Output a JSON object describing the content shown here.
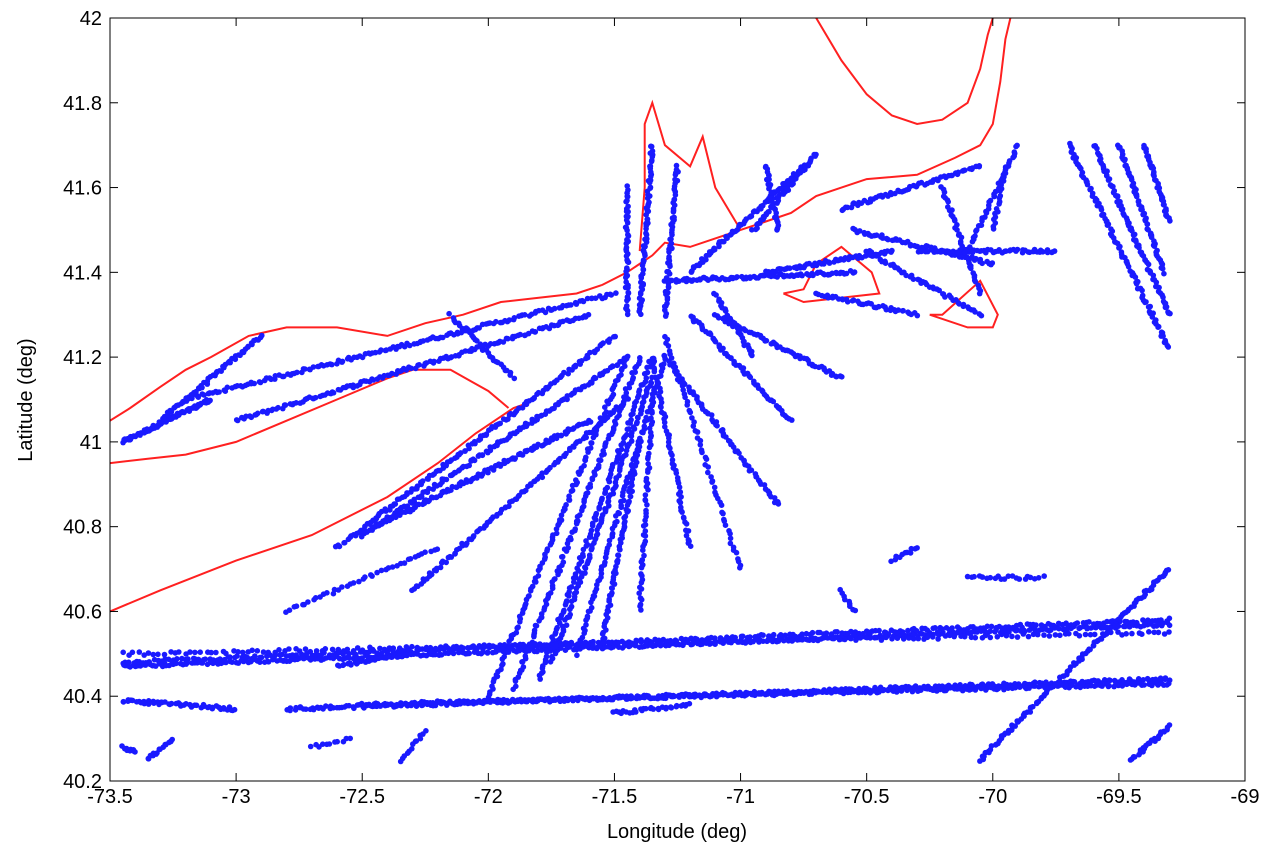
{
  "chart_data": {
    "type": "scatter",
    "title": "",
    "xlabel": "Longitude (deg)",
    "ylabel": "Latitude (deg)",
    "xlim": [
      -73.5,
      -69
    ],
    "ylim": [
      40.2,
      42
    ],
    "xticks": [
      -73.5,
      -73,
      -72.5,
      -72,
      -71.5,
      -71,
      -70.5,
      -70,
      -69.5,
      -69
    ],
    "yticks": [
      40.2,
      40.4,
      40.6,
      40.8,
      41,
      41.2,
      41.4,
      41.6,
      41.8,
      42
    ],
    "xtick_labels": [
      "-73.5",
      "-73",
      "-72.5",
      "-72",
      "-71.5",
      "-71",
      "-70.5",
      "-70",
      "-69.5",
      "-69"
    ],
    "ytick_labels": [
      "40.2",
      "40.4",
      "40.6",
      "40.8",
      "41",
      "41.2",
      "41.4",
      "41.6",
      "41.8",
      "42"
    ],
    "grid": false,
    "colors": {
      "coastline": "#ff2020",
      "tracks": "#1a1aff"
    },
    "coastline": {
      "li_north": [
        [
          -73.5,
          41.05
        ],
        [
          -73.42,
          41.08
        ],
        [
          -73.3,
          41.13
        ],
        [
          -73.2,
          41.17
        ],
        [
          -73.1,
          41.2
        ],
        [
          -72.95,
          41.25
        ],
        [
          -72.8,
          41.27
        ],
        [
          -72.6,
          41.27
        ],
        [
          -72.4,
          41.25
        ],
        [
          -72.25,
          41.28
        ],
        [
          -72.1,
          41.3
        ],
        [
          -71.95,
          41.33
        ],
        [
          -71.8,
          41.34
        ],
        [
          -71.65,
          41.35
        ],
        [
          -71.55,
          41.37
        ]
      ],
      "li_south": [
        [
          -73.5,
          40.6
        ],
        [
          -73.3,
          40.65
        ],
        [
          -73.0,
          40.72
        ],
        [
          -72.7,
          40.78
        ],
        [
          -72.4,
          40.87
        ],
        [
          -72.2,
          40.95
        ],
        [
          -72.05,
          41.02
        ],
        [
          -71.9,
          41.08
        ],
        [
          -71.85,
          41.09
        ]
      ],
      "li_north_fork": [
        [
          -73.5,
          40.95
        ],
        [
          -73.35,
          40.96
        ],
        [
          -73.2,
          40.97
        ],
        [
          -73.0,
          41.0
        ],
        [
          -72.8,
          41.05
        ],
        [
          -72.6,
          41.1
        ],
        [
          -72.4,
          41.15
        ],
        [
          -72.3,
          41.17
        ],
        [
          -72.15,
          41.17
        ],
        [
          -72.0,
          41.12
        ],
        [
          -71.92,
          41.08
        ]
      ],
      "ri_coast": [
        [
          -71.55,
          41.37
        ],
        [
          -71.45,
          41.4
        ],
        [
          -71.35,
          41.44
        ],
        [
          -71.3,
          41.47
        ],
        [
          -71.2,
          41.46
        ],
        [
          -71.1,
          41.48
        ],
        [
          -71.0,
          41.5
        ],
        [
          -70.9,
          41.52
        ],
        [
          -70.8,
          41.54
        ],
        [
          -70.7,
          41.58
        ],
        [
          -70.6,
          41.6
        ],
        [
          -70.5,
          41.62
        ],
        [
          -70.3,
          41.63
        ],
        [
          -70.15,
          41.67
        ],
        [
          -70.05,
          41.7
        ],
        [
          -70.0,
          41.75
        ],
        [
          -69.97,
          41.85
        ],
        [
          -69.95,
          41.95
        ],
        [
          -69.93,
          42.0
        ]
      ],
      "cape_cod_bay": [
        [
          -70.7,
          42.0
        ],
        [
          -70.6,
          41.9
        ],
        [
          -70.5,
          41.82
        ],
        [
          -70.4,
          41.77
        ],
        [
          -70.3,
          41.75
        ],
        [
          -70.2,
          41.76
        ],
        [
          -70.1,
          41.8
        ],
        [
          -70.05,
          41.88
        ],
        [
          -70.02,
          41.96
        ],
        [
          -70.0,
          42.0
        ]
      ],
      "narragansett": [
        [
          -71.4,
          41.45
        ],
        [
          -71.38,
          41.6
        ],
        [
          -71.38,
          41.75
        ],
        [
          -71.35,
          41.8
        ],
        [
          -71.3,
          41.7
        ],
        [
          -71.2,
          41.65
        ],
        [
          -71.15,
          41.72
        ],
        [
          -71.1,
          41.6
        ],
        [
          -71.0,
          41.5
        ]
      ],
      "marthas_vineyard": [
        [
          -70.83,
          41.35
        ],
        [
          -70.75,
          41.36
        ],
        [
          -70.7,
          41.42
        ],
        [
          -70.6,
          41.46
        ],
        [
          -70.48,
          41.4
        ],
        [
          -70.45,
          41.35
        ],
        [
          -70.6,
          41.34
        ],
        [
          -70.75,
          41.33
        ],
        [
          -70.83,
          41.35
        ]
      ],
      "nantucket": [
        [
          -70.25,
          41.3
        ],
        [
          -70.1,
          41.27
        ],
        [
          -70.0,
          41.27
        ],
        [
          -69.98,
          41.3
        ],
        [
          -70.05,
          41.38
        ],
        [
          -70.2,
          41.3
        ],
        [
          -70.25,
          41.3
        ]
      ]
    },
    "tracks": [
      {
        "from": [
          -73.45,
          41.0
        ],
        "to": [
          -73.1,
          41.1
        ],
        "n": 80
      },
      {
        "from": [
          -73.3,
          41.05
        ],
        "to": [
          -72.9,
          41.25
        ],
        "n": 60
      },
      {
        "from": [
          -73.2,
          41.1
        ],
        "to": [
          -71.5,
          41.35
        ],
        "n": 160
      },
      {
        "from": [
          -73.0,
          41.05
        ],
        "to": [
          -71.6,
          41.3
        ],
        "n": 140
      },
      {
        "from": [
          -72.6,
          40.75
        ],
        "to": [
          -71.5,
          41.25
        ],
        "n": 140
      },
      {
        "from": [
          -72.5,
          40.78
        ],
        "to": [
          -71.45,
          41.2
        ],
        "n": 140
      },
      {
        "from": [
          -72.45,
          40.8
        ],
        "to": [
          -71.6,
          41.05
        ],
        "n": 120
      },
      {
        "from": [
          -72.3,
          40.65
        ],
        "to": [
          -71.45,
          41.1
        ],
        "n": 110
      },
      {
        "from": [
          -72.8,
          40.6
        ],
        "to": [
          -72.2,
          40.75
        ],
        "n": 40
      },
      {
        "from": [
          -72.0,
          40.4
        ],
        "to": [
          -71.45,
          41.2
        ],
        "n": 120
      },
      {
        "from": [
          -71.9,
          40.42
        ],
        "to": [
          -71.4,
          41.2
        ],
        "n": 120
      },
      {
        "from": [
          -71.8,
          40.44
        ],
        "to": [
          -71.35,
          41.2
        ],
        "n": 110
      },
      {
        "from": [
          -71.75,
          40.48
        ],
        "to": [
          -71.35,
          41.15
        ],
        "n": 110
      },
      {
        "from": [
          -71.65,
          40.5
        ],
        "to": [
          -71.3,
          41.2
        ],
        "n": 100
      },
      {
        "from": [
          -71.55,
          40.52
        ],
        "to": [
          -71.4,
          41.0
        ],
        "n": 80
      },
      {
        "from": [
          -71.4,
          40.6
        ],
        "to": [
          -71.35,
          41.1
        ],
        "n": 60
      },
      {
        "from": [
          -71.2,
          40.75
        ],
        "to": [
          -71.35,
          41.2
        ],
        "n": 60
      },
      {
        "from": [
          -71.0,
          40.7
        ],
        "to": [
          -71.3,
          41.25
        ],
        "n": 60
      },
      {
        "from": [
          -70.85,
          40.85
        ],
        "to": [
          -71.3,
          41.2
        ],
        "n": 70
      },
      {
        "from": [
          -70.8,
          41.05
        ],
        "to": [
          -71.2,
          41.3
        ],
        "n": 60
      },
      {
        "from": [
          -70.6,
          41.15
        ],
        "to": [
          -71.1,
          41.3
        ],
        "n": 60
      },
      {
        "from": [
          -70.95,
          41.2
        ],
        "to": [
          -71.1,
          41.35
        ],
        "n": 30
      },
      {
        "from": [
          -70.55,
          41.4
        ],
        "to": [
          -71.3,
          41.38
        ],
        "n": 90
      },
      {
        "from": [
          -70.4,
          41.45
        ],
        "to": [
          -70.9,
          41.4
        ],
        "n": 60
      },
      {
        "from": [
          -70.3,
          41.3
        ],
        "to": [
          -70.7,
          41.35
        ],
        "n": 40
      },
      {
        "from": [
          -71.4,
          41.3
        ],
        "to": [
          -71.35,
          41.7
        ],
        "n": 70
      },
      {
        "from": [
          -71.3,
          41.3
        ],
        "to": [
          -71.25,
          41.65
        ],
        "n": 60
      },
      {
        "from": [
          -71.45,
          41.3
        ],
        "to": [
          -71.45,
          41.6
        ],
        "n": 50
      },
      {
        "from": [
          -71.2,
          41.4
        ],
        "to": [
          -70.75,
          41.65
        ],
        "n": 70
      },
      {
        "from": [
          -70.95,
          41.5
        ],
        "to": [
          -70.7,
          41.68
        ],
        "n": 50
      },
      {
        "from": [
          -70.85,
          41.5
        ],
        "to": [
          -70.9,
          41.65
        ],
        "n": 30
      },
      {
        "from": [
          -70.6,
          41.55
        ],
        "to": [
          -70.05,
          41.65
        ],
        "n": 60
      },
      {
        "from": [
          -70.55,
          41.5
        ],
        "to": [
          -70.0,
          41.42
        ],
        "n": 60
      },
      {
        "from": [
          -70.3,
          41.45
        ],
        "to": [
          -69.75,
          41.45
        ],
        "n": 60
      },
      {
        "from": [
          -70.5,
          41.45
        ],
        "to": [
          -70.05,
          41.3
        ],
        "n": 50
      },
      {
        "from": [
          -70.2,
          41.6
        ],
        "to": [
          -70.05,
          41.35
        ],
        "n": 40
      },
      {
        "from": [
          -70.1,
          41.45
        ],
        "to": [
          -69.9,
          41.7
        ],
        "n": 40
      },
      {
        "from": [
          -70.0,
          41.5
        ],
        "to": [
          -69.95,
          41.65
        ],
        "n": 20
      },
      {
        "from": [
          -69.7,
          41.7
        ],
        "to": [
          -69.3,
          41.22
        ],
        "n": 90
      },
      {
        "from": [
          -69.6,
          41.7
        ],
        "to": [
          -69.3,
          41.3
        ],
        "n": 80
      },
      {
        "from": [
          -69.5,
          41.7
        ],
        "to": [
          -69.32,
          41.4
        ],
        "n": 60
      },
      {
        "from": [
          -69.4,
          41.7
        ],
        "to": [
          -69.3,
          41.52
        ],
        "n": 40
      },
      {
        "from": [
          -73.45,
          40.47
        ],
        "to": [
          -69.3,
          40.57
        ],
        "n": 400
      },
      {
        "from": [
          -73.45,
          40.48
        ],
        "to": [
          -69.3,
          40.58
        ],
        "n": 300
      },
      {
        "from": [
          -73.45,
          40.5
        ],
        "to": [
          -69.3,
          40.55
        ],
        "n": 200
      },
      {
        "from": [
          -73.45,
          40.39
        ],
        "to": [
          -73.0,
          40.37
        ],
        "n": 50
      },
      {
        "from": [
          -72.8,
          40.37
        ],
        "to": [
          -69.3,
          40.44
        ],
        "n": 350
      },
      {
        "from": [
          -72.5,
          40.38
        ],
        "to": [
          -69.3,
          40.43
        ],
        "n": 300
      },
      {
        "from": [
          -71.5,
          40.36
        ],
        "to": [
          -71.2,
          40.38
        ],
        "n": 30
      },
      {
        "from": [
          -72.6,
          40.47
        ],
        "to": [
          -72.3,
          40.5
        ],
        "n": 30
      },
      {
        "from": [
          -70.05,
          40.25
        ],
        "to": [
          -69.3,
          40.7
        ],
        "n": 120
      },
      {
        "from": [
          -69.45,
          40.25
        ],
        "to": [
          -69.3,
          40.33
        ],
        "n": 25
      },
      {
        "from": [
          -73.35,
          40.25
        ],
        "to": [
          -73.25,
          40.3
        ],
        "n": 15
      },
      {
        "from": [
          -73.45,
          40.28
        ],
        "to": [
          -73.4,
          40.27
        ],
        "n": 8
      },
      {
        "from": [
          -72.35,
          40.25
        ],
        "to": [
          -72.25,
          40.32
        ],
        "n": 12
      },
      {
        "from": [
          -72.7,
          40.28
        ],
        "to": [
          -72.55,
          40.3
        ],
        "n": 10
      },
      {
        "from": [
          -70.4,
          40.72
        ],
        "to": [
          -70.3,
          40.75
        ],
        "n": 10
      },
      {
        "from": [
          -70.6,
          40.65
        ],
        "to": [
          -70.55,
          40.6
        ],
        "n": 8
      },
      {
        "from": [
          -70.1,
          40.68
        ],
        "to": [
          -69.8,
          40.68
        ],
        "n": 20
      },
      {
        "from": [
          -72.15,
          41.3
        ],
        "to": [
          -71.9,
          41.15
        ],
        "n": 30
      }
    ]
  }
}
